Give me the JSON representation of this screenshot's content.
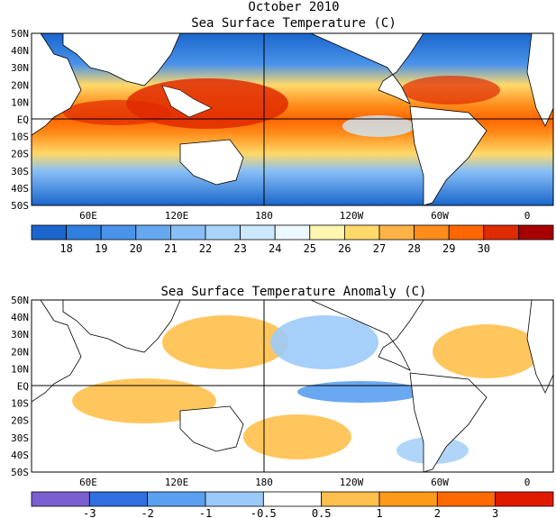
{
  "top_panel": {
    "title_line1": "October 2010",
    "title_line2": "Sea Surface Temperature (C)",
    "colorbar": {
      "labels": [
        "18",
        "19",
        "20",
        "21",
        "22",
        "23",
        "24",
        "25",
        "26",
        "27",
        "28",
        "29",
        "30"
      ],
      "colors": [
        "#1a66cc",
        "#2f7ee0",
        "#4a93ea",
        "#66a8f0",
        "#88bff6",
        "#a9d4fa",
        "#cce8fc",
        "#ecf8ff",
        "#fff6b0",
        "#ffd96a",
        "#ffb347",
        "#ff8c1a",
        "#ff6600",
        "#e02a00",
        "#a80000"
      ]
    }
  },
  "bottom_panel": {
    "title": "Sea Surface Temperature Anomaly (C)",
    "colorbar": {
      "labels": [
        "-3",
        "-2",
        "-1",
        "-0.5",
        "0.5",
        "1",
        "2",
        "3"
      ],
      "colors": [
        "#7a5fd1",
        "#2f6fe0",
        "#5aa0f0",
        "#9ccaf8",
        "#ffffff",
        "#ffc04d",
        "#ff9a1a",
        "#ff6a00",
        "#e01a00"
      ]
    }
  },
  "lat_labels": [
    "50N",
    "40N",
    "30N",
    "20N",
    "10N",
    "EQ",
    "10S",
    "20S",
    "30S",
    "40S",
    "50S"
  ],
  "lon_labels": [
    "60E",
    "120E",
    "180",
    "120W",
    "60W",
    "0"
  ],
  "colors": {
    "ocean_cold": "#2266cc",
    "ocean_warm": "#ff6a00",
    "land": "#ffffff",
    "neutral": "#ffffff"
  }
}
